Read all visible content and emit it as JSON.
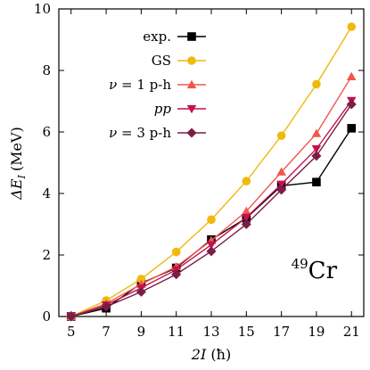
{
  "chart_data": {
    "type": "line",
    "xlabel": "2I (ħ)",
    "xlabel_main": "2I",
    "xlabel_unit": "(ħ)",
    "ylabel": "ΔE_I (MeV)",
    "ylabel_main": "ΔE",
    "ylabel_sub": "I",
    "ylabel_unit": "(MeV)",
    "xlim": [
      4.3,
      21.7
    ],
    "ylim": [
      0,
      10
    ],
    "x_ticks": [
      5,
      7,
      9,
      11,
      13,
      15,
      17,
      19,
      21
    ],
    "y_ticks": [
      0,
      2,
      4,
      6,
      8,
      10
    ],
    "grid": false,
    "legend_position": "top-left",
    "annotation": {
      "mass": "49",
      "symbol": "Cr"
    },
    "series": [
      {
        "name": "exp.",
        "name_main": "exp.",
        "color": "#000000",
        "marker": "square",
        "x": [
          5,
          7,
          9,
          11,
          13,
          15,
          17,
          19,
          21
        ],
        "y": [
          0.0,
          0.27,
          1.08,
          1.58,
          2.5,
          3.2,
          4.25,
          4.37,
          6.12
        ]
      },
      {
        "name": "GS",
        "name_main": "GS",
        "color": "#f0b90b",
        "marker": "circle",
        "x": [
          5,
          7,
          9,
          11,
          13,
          15,
          17,
          19,
          21
        ],
        "y": [
          0.0,
          0.52,
          1.22,
          2.1,
          3.15,
          4.4,
          5.88,
          7.55,
          9.42
        ]
      },
      {
        "name": "ν = 1 p-h",
        "name_main": "ν = 1 p-h",
        "color": "#f0584a",
        "marker": "triangle-up",
        "x": [
          5,
          7,
          9,
          11,
          13,
          15,
          17,
          19,
          21
        ],
        "y": [
          0.0,
          0.42,
          1.05,
          1.62,
          2.47,
          3.42,
          4.7,
          5.95,
          7.8
        ]
      },
      {
        "name": "pp",
        "name_main": "pp",
        "color": "#c3124f",
        "marker": "triangle-down",
        "x": [
          5,
          7,
          9,
          11,
          13,
          15,
          17,
          19,
          21
        ],
        "y": [
          0.0,
          0.37,
          0.93,
          1.52,
          2.33,
          3.22,
          4.3,
          5.45,
          7.02
        ]
      },
      {
        "name": "ν = 3 p-h",
        "name_main": "ν = 3 p-h",
        "color": "#7a1d47",
        "marker": "diamond",
        "x": [
          5,
          7,
          9,
          11,
          13,
          15,
          17,
          19,
          21
        ],
        "y": [
          0.0,
          0.32,
          0.8,
          1.37,
          2.12,
          3.0,
          4.12,
          5.22,
          6.9
        ]
      }
    ]
  }
}
